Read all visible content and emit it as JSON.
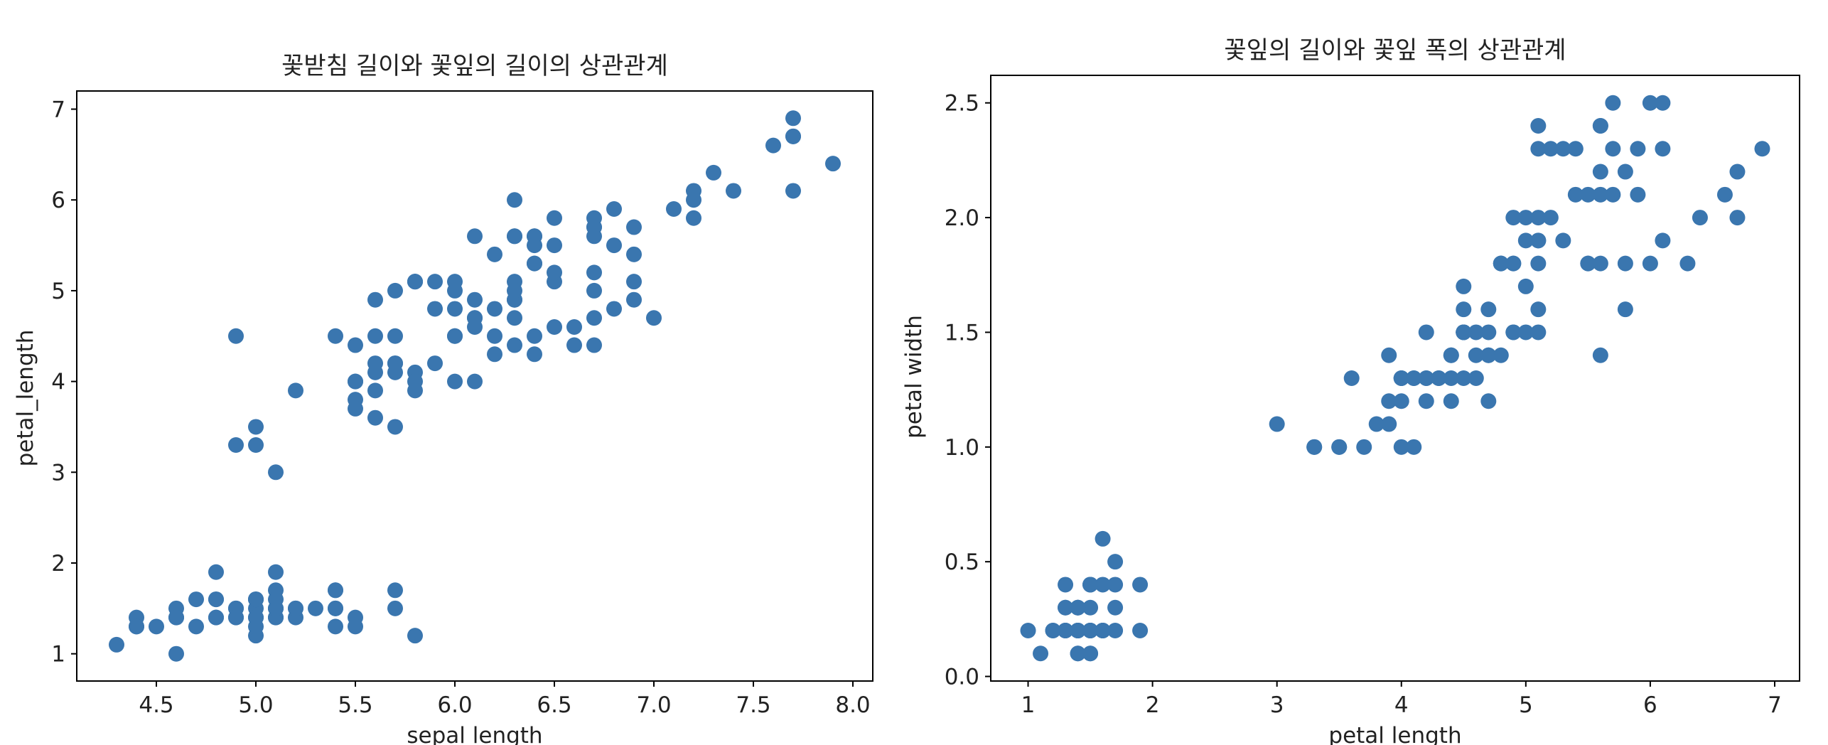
{
  "chart_data": [
    {
      "type": "scatter",
      "title": "꽃받침 길이와 꽃잎의 길이의 상관관계",
      "xlabel": "sepal length",
      "ylabel": "petal_length",
      "xlim": [
        4.1,
        8.1
      ],
      "ylim": [
        0.7,
        7.2
      ],
      "xticks": [
        4.5,
        5.0,
        5.5,
        6.0,
        6.5,
        7.0,
        7.5,
        8.0
      ],
      "xtick_labels": [
        "4.5",
        "5.0",
        "5.5",
        "6.0",
        "6.5",
        "7.0",
        "7.5",
        "8.0"
      ],
      "yticks": [
        1,
        2,
        3,
        4,
        5,
        6,
        7
      ],
      "ytick_labels": [
        "1",
        "2",
        "3",
        "4",
        "5",
        "6",
        "7"
      ],
      "grid": false,
      "color": "#3a76af",
      "points": [
        [
          5.1,
          1.4
        ],
        [
          4.9,
          1.4
        ],
        [
          4.7,
          1.3
        ],
        [
          4.6,
          1.5
        ],
        [
          5.0,
          1.4
        ],
        [
          5.4,
          1.7
        ],
        [
          4.6,
          1.4
        ],
        [
          5.0,
          1.5
        ],
        [
          4.4,
          1.4
        ],
        [
          4.9,
          1.5
        ],
        [
          5.4,
          1.5
        ],
        [
          4.8,
          1.6
        ],
        [
          4.8,
          1.4
        ],
        [
          4.3,
          1.1
        ],
        [
          5.8,
          1.2
        ],
        [
          5.7,
          1.5
        ],
        [
          5.4,
          1.3
        ],
        [
          5.1,
          1.4
        ],
        [
          5.7,
          1.7
        ],
        [
          5.1,
          1.5
        ],
        [
          5.4,
          1.7
        ],
        [
          5.1,
          1.5
        ],
        [
          4.6,
          1.0
        ],
        [
          5.1,
          1.7
        ],
        [
          4.8,
          1.9
        ],
        [
          5.0,
          1.6
        ],
        [
          5.0,
          1.6
        ],
        [
          5.2,
          1.5
        ],
        [
          5.2,
          1.4
        ],
        [
          4.7,
          1.6
        ],
        [
          4.8,
          1.6
        ],
        [
          5.4,
          1.5
        ],
        [
          5.2,
          1.5
        ],
        [
          5.5,
          1.4
        ],
        [
          4.9,
          1.5
        ],
        [
          5.0,
          1.2
        ],
        [
          5.5,
          1.3
        ],
        [
          4.9,
          1.4
        ],
        [
          4.4,
          1.3
        ],
        [
          5.1,
          1.5
        ],
        [
          5.0,
          1.3
        ],
        [
          4.5,
          1.3
        ],
        [
          4.4,
          1.3
        ],
        [
          5.0,
          1.6
        ],
        [
          5.1,
          1.9
        ],
        [
          4.8,
          1.4
        ],
        [
          5.1,
          1.6
        ],
        [
          4.6,
          1.4
        ],
        [
          5.3,
          1.5
        ],
        [
          5.0,
          1.4
        ],
        [
          7.0,
          4.7
        ],
        [
          6.4,
          4.5
        ],
        [
          6.9,
          4.9
        ],
        [
          5.5,
          4.0
        ],
        [
          6.5,
          4.6
        ],
        [
          5.7,
          4.5
        ],
        [
          6.3,
          4.7
        ],
        [
          4.9,
          3.3
        ],
        [
          6.6,
          4.6
        ],
        [
          5.2,
          3.9
        ],
        [
          5.0,
          3.5
        ],
        [
          5.9,
          4.2
        ],
        [
          6.0,
          4.0
        ],
        [
          6.1,
          4.7
        ],
        [
          5.6,
          3.6
        ],
        [
          6.7,
          4.4
        ],
        [
          5.6,
          4.5
        ],
        [
          5.8,
          4.1
        ],
        [
          6.2,
          4.5
        ],
        [
          5.6,
          3.9
        ],
        [
          5.9,
          4.8
        ],
        [
          6.1,
          4.0
        ],
        [
          6.3,
          4.9
        ],
        [
          6.1,
          4.7
        ],
        [
          6.4,
          4.3
        ],
        [
          6.6,
          4.4
        ],
        [
          6.8,
          4.8
        ],
        [
          6.7,
          5.0
        ],
        [
          6.0,
          4.5
        ],
        [
          5.7,
          3.5
        ],
        [
          5.5,
          3.8
        ],
        [
          5.5,
          3.7
        ],
        [
          5.8,
          3.9
        ],
        [
          6.0,
          5.1
        ],
        [
          5.4,
          4.5
        ],
        [
          6.0,
          4.5
        ],
        [
          6.7,
          4.7
        ],
        [
          6.3,
          4.4
        ],
        [
          5.6,
          4.1
        ],
        [
          5.5,
          4.0
        ],
        [
          5.5,
          4.4
        ],
        [
          6.1,
          4.6
        ],
        [
          5.8,
          4.0
        ],
        [
          5.0,
          3.3
        ],
        [
          5.6,
          4.2
        ],
        [
          5.7,
          4.2
        ],
        [
          5.7,
          4.2
        ],
        [
          6.2,
          4.3
        ],
        [
          5.1,
          3.0
        ],
        [
          5.7,
          4.1
        ],
        [
          6.3,
          6.0
        ],
        [
          5.8,
          5.1
        ],
        [
          7.1,
          5.9
        ],
        [
          6.3,
          5.6
        ],
        [
          6.5,
          5.8
        ],
        [
          7.6,
          6.6
        ],
        [
          4.9,
          4.5
        ],
        [
          7.3,
          6.3
        ],
        [
          6.7,
          5.8
        ],
        [
          7.2,
          6.1
        ],
        [
          6.5,
          5.1
        ],
        [
          6.4,
          5.3
        ],
        [
          6.8,
          5.5
        ],
        [
          5.7,
          5.0
        ],
        [
          5.8,
          5.1
        ],
        [
          6.4,
          5.3
        ],
        [
          6.5,
          5.5
        ],
        [
          7.7,
          6.7
        ],
        [
          7.7,
          6.9
        ],
        [
          6.0,
          5.0
        ],
        [
          6.9,
          5.7
        ],
        [
          5.6,
          4.9
        ],
        [
          7.7,
          6.7
        ],
        [
          6.3,
          4.9
        ],
        [
          6.7,
          5.7
        ],
        [
          7.2,
          6.0
        ],
        [
          6.2,
          4.8
        ],
        [
          6.1,
          4.9
        ],
        [
          6.4,
          5.6
        ],
        [
          7.2,
          5.8
        ],
        [
          7.4,
          6.1
        ],
        [
          7.9,
          6.4
        ],
        [
          6.4,
          5.6
        ],
        [
          6.3,
          5.1
        ],
        [
          6.1,
          5.6
        ],
        [
          7.7,
          6.1
        ],
        [
          6.3,
          5.6
        ],
        [
          6.4,
          5.5
        ],
        [
          6.0,
          4.8
        ],
        [
          6.9,
          5.4
        ],
        [
          6.7,
          5.6
        ],
        [
          6.9,
          5.1
        ],
        [
          5.8,
          5.1
        ],
        [
          6.8,
          5.9
        ],
        [
          6.7,
          5.7
        ],
        [
          6.7,
          5.2
        ],
        [
          6.3,
          5.0
        ],
        [
          6.5,
          5.2
        ],
        [
          6.2,
          5.4
        ],
        [
          5.9,
          5.1
        ]
      ]
    },
    {
      "type": "scatter",
      "title": "꽃잎의 길이와 꽃잎 폭의 상관관계",
      "xlabel": "petal length",
      "ylabel": "petal width",
      "xlim": [
        0.7,
        7.2
      ],
      "ylim": [
        -0.02,
        2.62
      ],
      "xticks": [
        1,
        2,
        3,
        4,
        5,
        6,
        7
      ],
      "xtick_labels": [
        "1",
        "2",
        "3",
        "4",
        "5",
        "6",
        "7"
      ],
      "yticks": [
        0.0,
        0.5,
        1.0,
        1.5,
        2.0,
        2.5
      ],
      "ytick_labels": [
        "0.0",
        "0.5",
        "1.0",
        "1.5",
        "2.0",
        "2.5"
      ],
      "grid": false,
      "color": "#3a76af",
      "points": [
        [
          1.4,
          0.2
        ],
        [
          1.4,
          0.2
        ],
        [
          1.3,
          0.2
        ],
        [
          1.5,
          0.2
        ],
        [
          1.4,
          0.2
        ],
        [
          1.7,
          0.4
        ],
        [
          1.4,
          0.3
        ],
        [
          1.5,
          0.2
        ],
        [
          1.4,
          0.2
        ],
        [
          1.5,
          0.1
        ],
        [
          1.5,
          0.2
        ],
        [
          1.6,
          0.2
        ],
        [
          1.4,
          0.1
        ],
        [
          1.1,
          0.1
        ],
        [
          1.2,
          0.2
        ],
        [
          1.5,
          0.4
        ],
        [
          1.3,
          0.4
        ],
        [
          1.4,
          0.3
        ],
        [
          1.7,
          0.3
        ],
        [
          1.5,
          0.3
        ],
        [
          1.7,
          0.2
        ],
        [
          1.5,
          0.4
        ],
        [
          1.0,
          0.2
        ],
        [
          1.7,
          0.5
        ],
        [
          1.9,
          0.2
        ],
        [
          1.6,
          0.2
        ],
        [
          1.6,
          0.4
        ],
        [
          1.5,
          0.2
        ],
        [
          1.4,
          0.2
        ],
        [
          1.6,
          0.2
        ],
        [
          1.6,
          0.2
        ],
        [
          1.5,
          0.4
        ],
        [
          1.5,
          0.1
        ],
        [
          1.4,
          0.2
        ],
        [
          1.5,
          0.2
        ],
        [
          1.2,
          0.2
        ],
        [
          1.3,
          0.2
        ],
        [
          1.4,
          0.1
        ],
        [
          1.3,
          0.2
        ],
        [
          1.5,
          0.2
        ],
        [
          1.3,
          0.3
        ],
        [
          1.3,
          0.3
        ],
        [
          1.3,
          0.2
        ],
        [
          1.6,
          0.6
        ],
        [
          1.9,
          0.4
        ],
        [
          1.4,
          0.3
        ],
        [
          1.6,
          0.2
        ],
        [
          1.4,
          0.2
        ],
        [
          1.5,
          0.2
        ],
        [
          1.4,
          0.2
        ],
        [
          4.7,
          1.4
        ],
        [
          4.5,
          1.5
        ],
        [
          4.9,
          1.5
        ],
        [
          4.0,
          1.3
        ],
        [
          4.6,
          1.5
        ],
        [
          4.5,
          1.3
        ],
        [
          4.7,
          1.6
        ],
        [
          3.3,
          1.0
        ],
        [
          4.6,
          1.3
        ],
        [
          3.9,
          1.4
        ],
        [
          3.5,
          1.0
        ],
        [
          4.2,
          1.5
        ],
        [
          4.0,
          1.0
        ],
        [
          4.7,
          1.4
        ],
        [
          3.6,
          1.3
        ],
        [
          4.4,
          1.4
        ],
        [
          4.5,
          1.5
        ],
        [
          4.1,
          1.0
        ],
        [
          4.5,
          1.5
        ],
        [
          3.9,
          1.1
        ],
        [
          4.8,
          1.8
        ],
        [
          4.0,
          1.3
        ],
        [
          4.9,
          1.5
        ],
        [
          4.7,
          1.2
        ],
        [
          4.3,
          1.3
        ],
        [
          4.4,
          1.4
        ],
        [
          4.8,
          1.4
        ],
        [
          5.0,
          1.7
        ],
        [
          4.5,
          1.5
        ],
        [
          3.5,
          1.0
        ],
        [
          3.8,
          1.1
        ],
        [
          3.7,
          1.0
        ],
        [
          3.9,
          1.2
        ],
        [
          5.1,
          1.6
        ],
        [
          4.5,
          1.5
        ],
        [
          4.5,
          1.6
        ],
        [
          4.7,
          1.5
        ],
        [
          4.4,
          1.3
        ],
        [
          4.1,
          1.3
        ],
        [
          4.0,
          1.3
        ],
        [
          4.4,
          1.2
        ],
        [
          4.6,
          1.4
        ],
        [
          4.0,
          1.2
        ],
        [
          3.3,
          1.0
        ],
        [
          4.2,
          1.3
        ],
        [
          4.2,
          1.2
        ],
        [
          4.2,
          1.3
        ],
        [
          4.3,
          1.3
        ],
        [
          3.0,
          1.1
        ],
        [
          4.1,
          1.3
        ],
        [
          6.0,
          2.5
        ],
        [
          5.1,
          1.9
        ],
        [
          5.9,
          2.1
        ],
        [
          5.6,
          1.8
        ],
        [
          5.8,
          2.2
        ],
        [
          6.6,
          2.1
        ],
        [
          4.5,
          1.7
        ],
        [
          6.3,
          1.8
        ],
        [
          5.8,
          1.8
        ],
        [
          6.1,
          2.5
        ],
        [
          5.1,
          2.0
        ],
        [
          5.3,
          1.9
        ],
        [
          5.5,
          2.1
        ],
        [
          5.0,
          2.0
        ],
        [
          5.1,
          2.4
        ],
        [
          5.3,
          2.3
        ],
        [
          5.5,
          1.8
        ],
        [
          6.7,
          2.2
        ],
        [
          6.9,
          2.3
        ],
        [
          5.0,
          1.5
        ],
        [
          5.7,
          2.3
        ],
        [
          4.9,
          2.0
        ],
        [
          6.7,
          2.0
        ],
        [
          4.9,
          1.8
        ],
        [
          5.7,
          2.1
        ],
        [
          6.0,
          1.8
        ],
        [
          4.8,
          1.8
        ],
        [
          4.9,
          1.8
        ],
        [
          5.6,
          2.1
        ],
        [
          5.8,
          1.6
        ],
        [
          6.1,
          1.9
        ],
        [
          6.4,
          2.0
        ],
        [
          5.6,
          2.2
        ],
        [
          5.1,
          1.5
        ],
        [
          5.6,
          1.4
        ],
        [
          6.1,
          2.3
        ],
        [
          5.6,
          2.4
        ],
        [
          5.5,
          1.8
        ],
        [
          4.8,
          1.8
        ],
        [
          5.4,
          2.1
        ],
        [
          5.6,
          2.4
        ],
        [
          5.1,
          2.3
        ],
        [
          5.1,
          1.9
        ],
        [
          5.9,
          2.3
        ],
        [
          5.7,
          2.5
        ],
        [
          5.2,
          2.3
        ],
        [
          5.0,
          1.9
        ],
        [
          5.2,
          2.0
        ],
        [
          5.4,
          2.3
        ],
        [
          5.1,
          1.8
        ]
      ]
    }
  ]
}
